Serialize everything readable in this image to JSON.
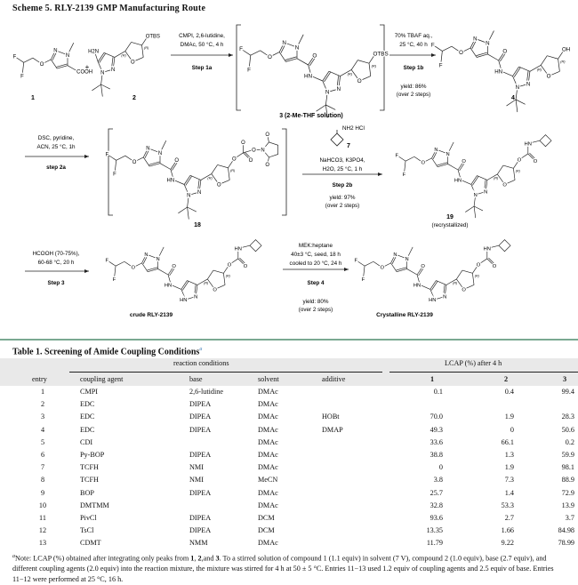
{
  "scheme": {
    "title": "Scheme 5. RLY-2139 GMP Manufacturing Route",
    "atom_labels": {
      "F": "F",
      "O": "O",
      "N": "N",
      "HN": "HN",
      "H2N": "H2N",
      "COOH": "COOH",
      "OTBS": "OTBS",
      "OH": "OH",
      "R": "(R)",
      "plus": "+",
      "NH2HCl": "NH2 HCl"
    },
    "compounds": {
      "c1": "1",
      "c2": "2",
      "c3": "3 (2-Me-THF solution)",
      "c4": "4",
      "c18": "18",
      "c7": "7",
      "c19": "19",
      "c19_note": "(recrystallized)",
      "crude": "crude RLY-2139",
      "crystalline": "Crystalline RLY-2139"
    },
    "steps": {
      "s1a": {
        "lines": [
          "CMPI, 2,6-lutidine,",
          "DMAc, 50 °C, 4 h"
        ],
        "label": "Step 1a"
      },
      "s1b": {
        "lines": [
          "70% TBAF aq.,",
          "25 °C, 40 h"
        ],
        "label": "Step 1b",
        "yield": [
          "yield: 86%",
          "(over 2 steps)"
        ]
      },
      "s2a": {
        "lines": [
          "DSC, pyridine,",
          "ACN, 25 °C, 1h"
        ],
        "label": "step 2a"
      },
      "s2b": {
        "lines": [
          "NaHCO3, K3PO4,",
          "H2O, 25 °C, 1 h"
        ],
        "label": "Step 2b",
        "yield": [
          "yield: 97%",
          "(over 2 steps)"
        ]
      },
      "s3": {
        "lines": [
          "HCOOH (70-75%),",
          "60-68 °C, 20 h"
        ],
        "label": "Step 3"
      },
      "s4": {
        "lines": [
          "MEK:heptane",
          "40±3 °C, seed, 18 h",
          "cooled to 20 °C, 24 h"
        ],
        "label": "Step 4",
        "yield": [
          "yield: 80%",
          "(over 2 steps)"
        ]
      }
    },
    "colors": {
      "rule": "#7aa891",
      "header_band": "#e9e9e9"
    }
  },
  "table": {
    "title": "Table 1. Screening of Amide Coupling Conditions",
    "title_mark": "a",
    "group_headers": {
      "conditions": "reaction conditions",
      "lcap": "LCAP (%) after 4 h"
    },
    "columns": {
      "entry": "entry",
      "agent": "coupling agent",
      "base": "base",
      "solvent": "solvent",
      "additive": "additive",
      "c1": "1",
      "c2": "2",
      "c3": "3"
    },
    "rows": [
      {
        "entry": "1",
        "agent": "CMPI",
        "base": "2,6-lutidine",
        "solvent": "DMAc",
        "additive": "",
        "c1": "0.1",
        "c2": "0.4",
        "c3": "99.4"
      },
      {
        "entry": "2",
        "agent": "EDC",
        "base": "DIPEA",
        "solvent": "DMAc",
        "additive": "",
        "c1": "",
        "c2": "",
        "c3": ""
      },
      {
        "entry": "3",
        "agent": "EDC",
        "base": "DIPEA",
        "solvent": "DMAc",
        "additive": "HOBt",
        "c1": "70.0",
        "c2": "1.9",
        "c3": "28.3"
      },
      {
        "entry": "4",
        "agent": "EDC",
        "base": "DIPEA",
        "solvent": "DMAc",
        "additive": "DMAP",
        "c1": "49.3",
        "c2": "0",
        "c3": "50.6"
      },
      {
        "entry": "5",
        "agent": "CDI",
        "base": "",
        "solvent": "DMAc",
        "additive": "",
        "c1": "33.6",
        "c2": "66.1",
        "c3": "0.2"
      },
      {
        "entry": "6",
        "agent": "Py-BOP",
        "base": "DIPEA",
        "solvent": "DMAc",
        "additive": "",
        "c1": "38.8",
        "c2": "1.3",
        "c3": "59.9"
      },
      {
        "entry": "7",
        "agent": "TCFH",
        "base": "NMI",
        "solvent": "DMAc",
        "additive": "",
        "c1": "0",
        "c2": "1.9",
        "c3": "98.1"
      },
      {
        "entry": "8",
        "agent": "TCFH",
        "base": "NMI",
        "solvent": "MeCN",
        "additive": "",
        "c1": "3.8",
        "c2": "7.3",
        "c3": "88.9"
      },
      {
        "entry": "9",
        "agent": "BOP",
        "base": "DIPEA",
        "solvent": "DMAc",
        "additive": "",
        "c1": "25.7",
        "c2": "1.4",
        "c3": "72.9"
      },
      {
        "entry": "10",
        "agent": "DMTMM",
        "base": "",
        "solvent": "DMAc",
        "additive": "",
        "c1": "32.8",
        "c2": "53.3",
        "c3": "13.9"
      },
      {
        "entry": "11",
        "agent": "PivCl",
        "base": "DIPEA",
        "solvent": "DCM",
        "additive": "",
        "c1": "93.6",
        "c2": "2.7",
        "c3": "3.7"
      },
      {
        "entry": "12",
        "agent": "TsCl",
        "base": "DIPEA",
        "solvent": "DCM",
        "additive": "",
        "c1": "13.35",
        "c2": "1.66",
        "c3": "84.98"
      },
      {
        "entry": "13",
        "agent": "CDMT",
        "base": "NMM",
        "solvent": "DMAc",
        "additive": "",
        "c1": "11.79",
        "c2": "9.22",
        "c3": "78.99"
      }
    ],
    "footnote": {
      "mark": "a",
      "parts": [
        "Note: LCAP (%) obtained after integrating only peaks from ",
        "1",
        ", ",
        "2",
        ",and ",
        "3",
        ". To a stirred solution of compound 1 (1.1 equiv) in solvent (7 V), compound 2 (1.0 equiv), base (2.7 equiv), and different coupling agents (2.0 equiv) into the reaction mixture, the mixture was stirred for 4 h at 50 ± 5 °C. Entries 11−13 used 1.2 equiv of coupling agents and 2.5 equiv of base. Entries 11−12 were performed at 25 °C, 16 h."
      ]
    }
  }
}
